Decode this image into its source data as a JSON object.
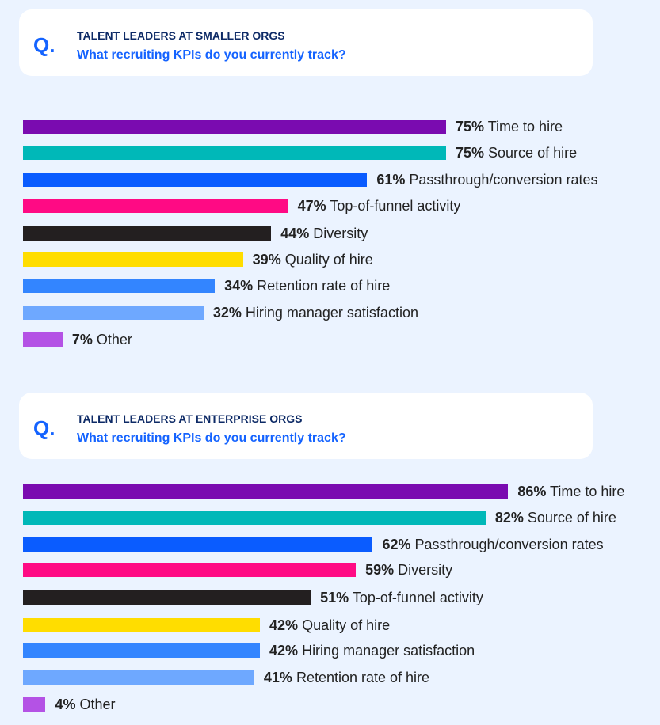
{
  "chart_data": [
    {
      "type": "bar",
      "subtitle": "TALENT LEADERS AT SMALLER ORGS",
      "title": "What recruiting KPIs do you currently track?",
      "q_label": "Q.",
      "categories": [
        "Time to hire",
        "Source of hire",
        "Passthrough/conversion rates",
        "Top-of-funnel activity",
        "Diversity",
        "Quality of hire",
        "Retention rate of hire",
        "Hiring manager satisfaction",
        "Other"
      ],
      "values": [
        75,
        75,
        61,
        47,
        44,
        39,
        34,
        32,
        7
      ],
      "value_labels": [
        "75%",
        "75%",
        "61%",
        "47%",
        "44%",
        "39%",
        "34%",
        "32%",
        "7%"
      ],
      "colors": [
        "#7a0bb0",
        "#00b8b8",
        "#0a5cff",
        "#ff0a84",
        "#231f20",
        "#ffdd00",
        "#3385ff",
        "#6ea8ff",
        "#b452e5"
      ],
      "orientation": "horizontal"
    },
    {
      "type": "bar",
      "subtitle": "TALENT LEADERS AT ENTERPRISE ORGS",
      "title": "What recruiting KPIs do you currently track?",
      "q_label": "Q.",
      "categories": [
        "Time to hire",
        "Source of hire",
        "Passthrough/conversion rates",
        "Diversity",
        "Top-of-funnel activity",
        "Quality of hire",
        "Hiring manager satisfaction",
        "Retention rate of hire",
        "Other"
      ],
      "values": [
        86,
        82,
        62,
        59,
        51,
        42,
        42,
        41,
        4
      ],
      "value_labels": [
        "86%",
        "82%",
        "62%",
        "59%",
        "51%",
        "42%",
        "42%",
        "41%",
        "4%"
      ],
      "colors": [
        "#7a0bb0",
        "#00b8b8",
        "#0a5cff",
        "#ff0a84",
        "#231f20",
        "#ffdd00",
        "#3385ff",
        "#6ea8ff",
        "#b452e5"
      ],
      "orientation": "horizontal"
    }
  ]
}
